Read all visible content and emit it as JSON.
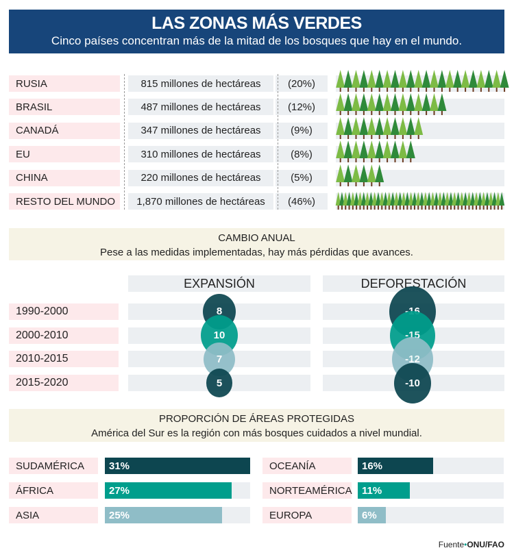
{
  "header": {
    "title": "LAS ZONAS MÁS VERDES",
    "subtitle": "Cinco países concentran más de la mitad de los bosques que hay en el mundo."
  },
  "colors": {
    "title_bg": "#17457a",
    "dark": "#0d4650",
    "teal": "#009e8c",
    "light": "#8fbdc7",
    "tree_light": "#7dbb45",
    "tree_dark": "#2f8a3a",
    "trunk": "#6b3a1f"
  },
  "chart_data": [
    {
      "type": "table",
      "title": "LAS ZONAS MÁS VERDES",
      "rows": [
        {
          "country": "RUSIA",
          "area": "815 millones de hectáreas",
          "pct": "(20%)",
          "trees": 22
        },
        {
          "country": "BRASIL",
          "area": "487 millones de hectáreas",
          "pct": "(12%)",
          "trees": 14
        },
        {
          "country": "CANADÁ",
          "area": "347 millones de hectáreas",
          "pct": "(9%)",
          "trees": 11
        },
        {
          "country": "EU",
          "area": "310 millones de hectáreas",
          "pct": "(8%)",
          "trees": 10
        },
        {
          "country": "CHINA",
          "area": "220 millones de hectáreas",
          "pct": "(5%)",
          "trees": 6
        },
        {
          "country": "RESTO DEL MUNDO",
          "area": "1,870 millones de hectáreas",
          "pct": "(46%)",
          "trees": 46
        }
      ]
    },
    {
      "type": "scatter",
      "title": "CAMBIO ANUAL",
      "subtitle": "Pese a las medidas implementadas, hay más pérdidas que avances.",
      "categories": [
        "1990-2000",
        "2000-2010",
        "2010-2015",
        "2015-2020"
      ],
      "series": [
        {
          "name": "EXPANSIÓN",
          "values": [
            8,
            10,
            7,
            5
          ],
          "labels": [
            "8",
            "10",
            "7",
            "5"
          ]
        },
        {
          "name": "DEFORESTACIÓN",
          "values": [
            -16,
            -15,
            -12,
            -10
          ],
          "labels": [
            "-16",
            "-15",
            "-12",
            "-10"
          ]
        }
      ]
    },
    {
      "type": "bar",
      "title": "PROPORCIÓN DE ÁREAS PROTEGIDAS",
      "subtitle": "América del Sur es la región con más bosques cuidados a nivel mundial.",
      "categories": [
        "SUDAMÉRICA",
        "ÁFRICA",
        "ASIA",
        "OCEANÍA",
        "NORTEAMÉRICA",
        "EUROPA"
      ],
      "values": [
        31,
        27,
        25,
        16,
        11,
        6
      ],
      "labels": [
        "31%",
        "27%",
        "25%",
        "16%",
        "11%",
        "6%"
      ],
      "xlim": [
        0,
        31
      ]
    }
  ],
  "footer": {
    "source_label": "Fuente",
    "source": "ONU/FAO"
  }
}
